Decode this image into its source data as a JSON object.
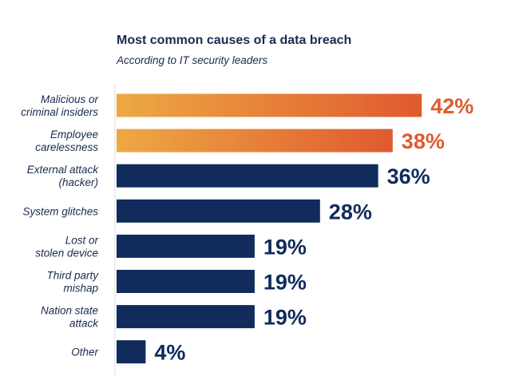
{
  "chart_data": {
    "type": "bar",
    "orientation": "horizontal",
    "title": "Most common causes of a data breach",
    "subtitle": "According to IT security leaders",
    "categories": [
      [
        "Malicious or",
        "criminal insiders"
      ],
      [
        "Employee",
        "carelessness"
      ],
      [
        "External attack",
        "(hacker)"
      ],
      [
        "System glitches"
      ],
      [
        "Lost or",
        "stolen device"
      ],
      [
        "Third party",
        "mishap"
      ],
      [
        "Nation state",
        "attack"
      ],
      [
        "Other"
      ]
    ],
    "values": [
      42,
      38,
      36,
      28,
      19,
      19,
      19,
      4
    ],
    "value_labels": [
      "42%",
      "38%",
      "36%",
      "28%",
      "19%",
      "19%",
      "19%",
      "4%"
    ],
    "highlighted": [
      true,
      true,
      false,
      false,
      false,
      false,
      false,
      false
    ],
    "xlim": [
      0,
      100
    ],
    "colors": {
      "bar": "#102b5c",
      "highlight_start": "#eda944",
      "highlight_end": "#e05a2f",
      "highlight_label": "#e05a2f",
      "label": "#102b5c",
      "axis": "#dcdcdc"
    }
  }
}
